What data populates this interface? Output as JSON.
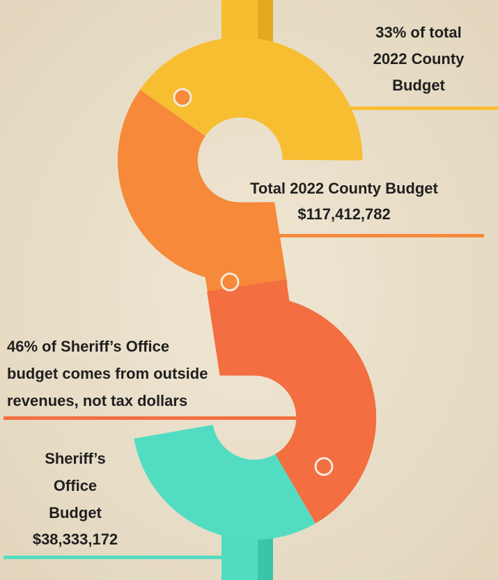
{
  "labels": [
    {
      "lines": [
        "33% of total",
        "2022 County",
        "Budget"
      ]
    },
    {
      "lines": [
        "Total 2022 County Budget",
        "$117,412,782"
      ]
    },
    {
      "lines": [
        "46% of Sheriff’s Office",
        "budget comes from outside",
        "revenues, not tax dollars"
      ]
    },
    {
      "lines": [
        "Sheriff’s",
        "Office",
        "Budget",
        "$38,333,172"
      ]
    }
  ]
}
